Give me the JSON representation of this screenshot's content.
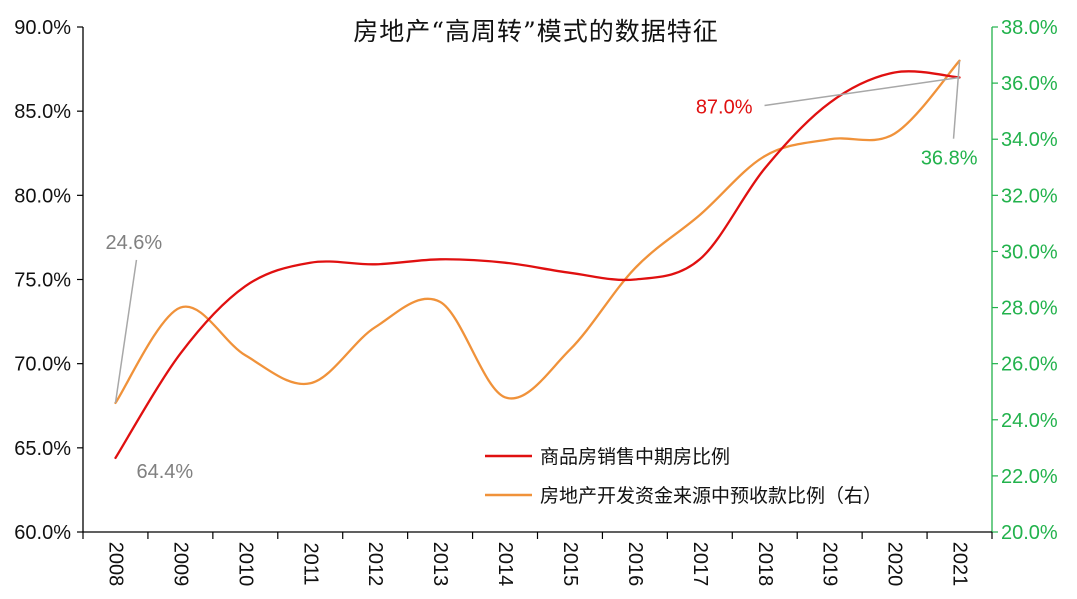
{
  "chart_data": {
    "type": "line",
    "title": "房地产“高周转”模式的数据特征",
    "categories": [
      "2008",
      "2009",
      "2010",
      "2011",
      "2012",
      "2013",
      "2014",
      "2015",
      "2016",
      "2017",
      "2018",
      "2019",
      "2020",
      "2021"
    ],
    "x_tick_labels": [
      "2008",
      "2009",
      "2010",
      "2011",
      "2012",
      "2013",
      "2014",
      "2015",
      "2016",
      "2017",
      "2018",
      "2019",
      "2020",
      "2021"
    ],
    "y_left": {
      "ylim": [
        60.0,
        90.0
      ],
      "ticks": [
        "60.0%",
        "65.0%",
        "70.0%",
        "75.0%",
        "80.0%",
        "85.0%",
        "90.0%"
      ],
      "color": "#000000"
    },
    "y_right": {
      "ylim": [
        20.0,
        38.0
      ],
      "ticks": [
        "20.0%",
        "22.0%",
        "24.0%",
        "26.0%",
        "28.0%",
        "30.0%",
        "32.0%",
        "34.0%",
        "36.0%",
        "38.0%"
      ],
      "color": "#22b24c"
    },
    "series": [
      {
        "name": "商品房销售中期房比例",
        "axis": "left",
        "color": "#e01010",
        "values": [
          64.4,
          70.6,
          74.6,
          76.0,
          75.9,
          76.2,
          76.0,
          75.4,
          75.0,
          76.2,
          81.6,
          85.5,
          87.3,
          87.0
        ]
      },
      {
        "name": "房地产开发资金来源中预收款比例（右）",
        "axis": "right",
        "color": "#f0923a",
        "values": [
          24.6,
          28.0,
          26.3,
          25.3,
          27.3,
          28.2,
          24.8,
          26.5,
          29.4,
          31.3,
          33.4,
          34.0,
          34.2,
          36.8
        ]
      }
    ],
    "annotations": [
      {
        "text": "24.6%",
        "series": 1,
        "point": 0,
        "color": "#808080"
      },
      {
        "text": "64.4%",
        "series": 0,
        "point": 0,
        "color": "#808080"
      },
      {
        "text": "87.0%",
        "series": 0,
        "point": 13,
        "color": "#e01010"
      },
      {
        "text": "36.8%",
        "series": 1,
        "point": 13,
        "color": "#22b24c"
      }
    ],
    "legend": {
      "position": "bottom-center",
      "entries": [
        "商品房销售中期房比例",
        "房地产开发资金来源中预收款比例（右）"
      ]
    }
  }
}
